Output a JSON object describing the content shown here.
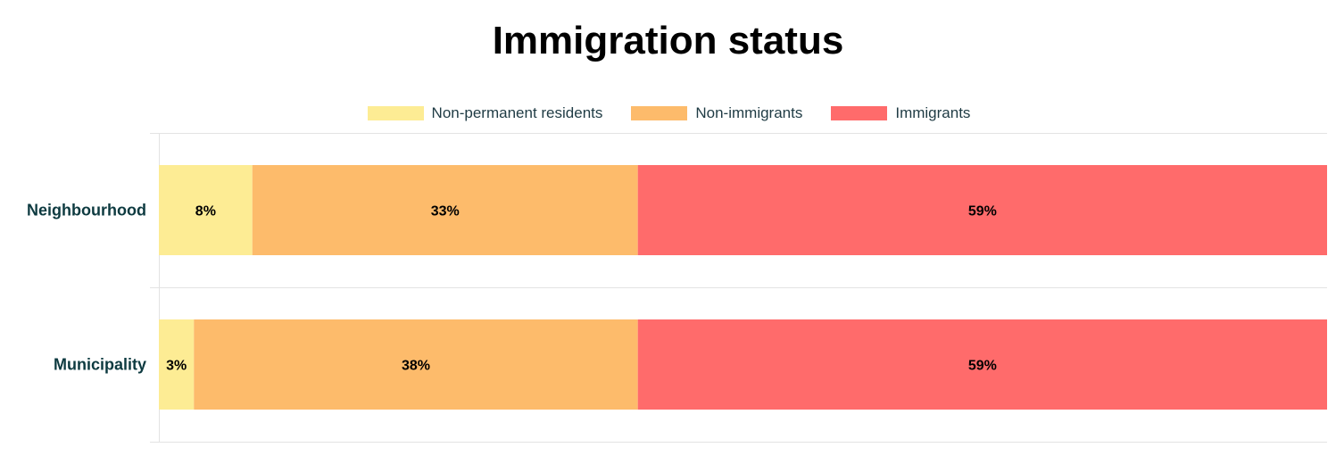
{
  "chart_data": {
    "type": "bar",
    "orientation": "horizontal",
    "stacked": true,
    "title": "Immigration status",
    "categories": [
      "Neighbourhood",
      "Municipality"
    ],
    "series": [
      {
        "name": "Non-permanent residents",
        "color": "#fdec94",
        "values": [
          8,
          3
        ],
        "labels": [
          "8%",
          "3%"
        ]
      },
      {
        "name": "Non-immigrants",
        "color": "#fdbb6b",
        "values": [
          33,
          38
        ],
        "labels": [
          "33%",
          "38%"
        ]
      },
      {
        "name": "Immigrants",
        "color": "#ff6b6b",
        "values": [
          59,
          59
        ],
        "labels": [
          "59%",
          "59%"
        ]
      }
    ],
    "xlim": [
      0,
      100
    ],
    "legend_position": "top",
    "grid": true
  }
}
